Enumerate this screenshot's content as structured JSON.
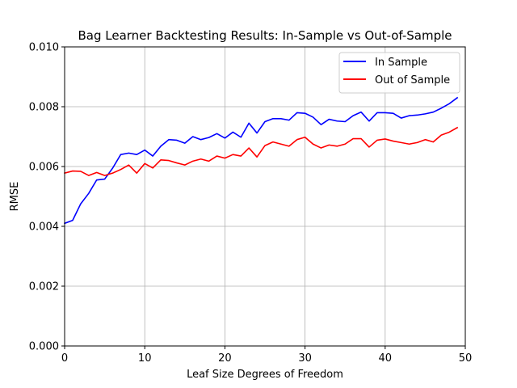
{
  "chart_data": {
    "type": "line",
    "title": "Bag Learner Backtesting Results: In-Sample vs Out-of-Sample",
    "xlabel": "Leaf Size Degrees of Freedom",
    "ylabel": "RMSE",
    "xlim": [
      0,
      50
    ],
    "ylim": [
      0,
      0.01
    ],
    "xticks": [
      0,
      10,
      20,
      30,
      40,
      50
    ],
    "xtick_labels": [
      "0",
      "10",
      "20",
      "30",
      "40",
      "50"
    ],
    "yticks": [
      0,
      0.002,
      0.004,
      0.006,
      0.008,
      0.01
    ],
    "ytick_labels": [
      "0.000",
      "0.002",
      "0.004",
      "0.006",
      "0.008",
      "0.010"
    ],
    "grid": true,
    "legend_position": "top-right",
    "x": [
      0,
      1,
      2,
      3,
      4,
      5,
      6,
      7,
      8,
      9,
      10,
      11,
      12,
      13,
      14,
      15,
      16,
      17,
      18,
      19,
      20,
      21,
      22,
      23,
      24,
      25,
      26,
      27,
      28,
      29,
      30,
      31,
      32,
      33,
      34,
      35,
      36,
      37,
      38,
      39,
      40,
      41,
      42,
      43,
      44,
      45,
      46,
      47,
      48,
      49
    ],
    "series": [
      {
        "name": "In Sample",
        "color": "#0000ff",
        "values": [
          0.0041,
          0.0042,
          0.00475,
          0.0051,
          0.00555,
          0.00558,
          0.00595,
          0.0064,
          0.00645,
          0.0064,
          0.00655,
          0.00635,
          0.00668,
          0.0069,
          0.00688,
          0.00678,
          0.007,
          0.0069,
          0.00697,
          0.0071,
          0.00695,
          0.00715,
          0.00698,
          0.00745,
          0.00712,
          0.0075,
          0.0076,
          0.0076,
          0.00755,
          0.0078,
          0.00778,
          0.00765,
          0.0074,
          0.00758,
          0.00752,
          0.0075,
          0.0077,
          0.00782,
          0.00752,
          0.0078,
          0.0078,
          0.00778,
          0.00762,
          0.0077,
          0.00772,
          0.00776,
          0.00782,
          0.00795,
          0.0081,
          0.0083
        ]
      },
      {
        "name": "Out of Sample",
        "color": "#ff0000",
        "values": [
          0.00578,
          0.00585,
          0.00584,
          0.0057,
          0.0058,
          0.0057,
          0.00578,
          0.0059,
          0.00605,
          0.00578,
          0.0061,
          0.00595,
          0.00622,
          0.0062,
          0.00612,
          0.00605,
          0.00618,
          0.00625,
          0.00618,
          0.00635,
          0.00628,
          0.0064,
          0.00635,
          0.00662,
          0.00632,
          0.0067,
          0.00682,
          0.00675,
          0.00668,
          0.0069,
          0.00698,
          0.00675,
          0.00662,
          0.00672,
          0.00668,
          0.00675,
          0.00693,
          0.00693,
          0.00665,
          0.00688,
          0.00692,
          0.00685,
          0.0068,
          0.00675,
          0.0068,
          0.0069,
          0.00682,
          0.00705,
          0.00715,
          0.0073
        ]
      }
    ]
  }
}
